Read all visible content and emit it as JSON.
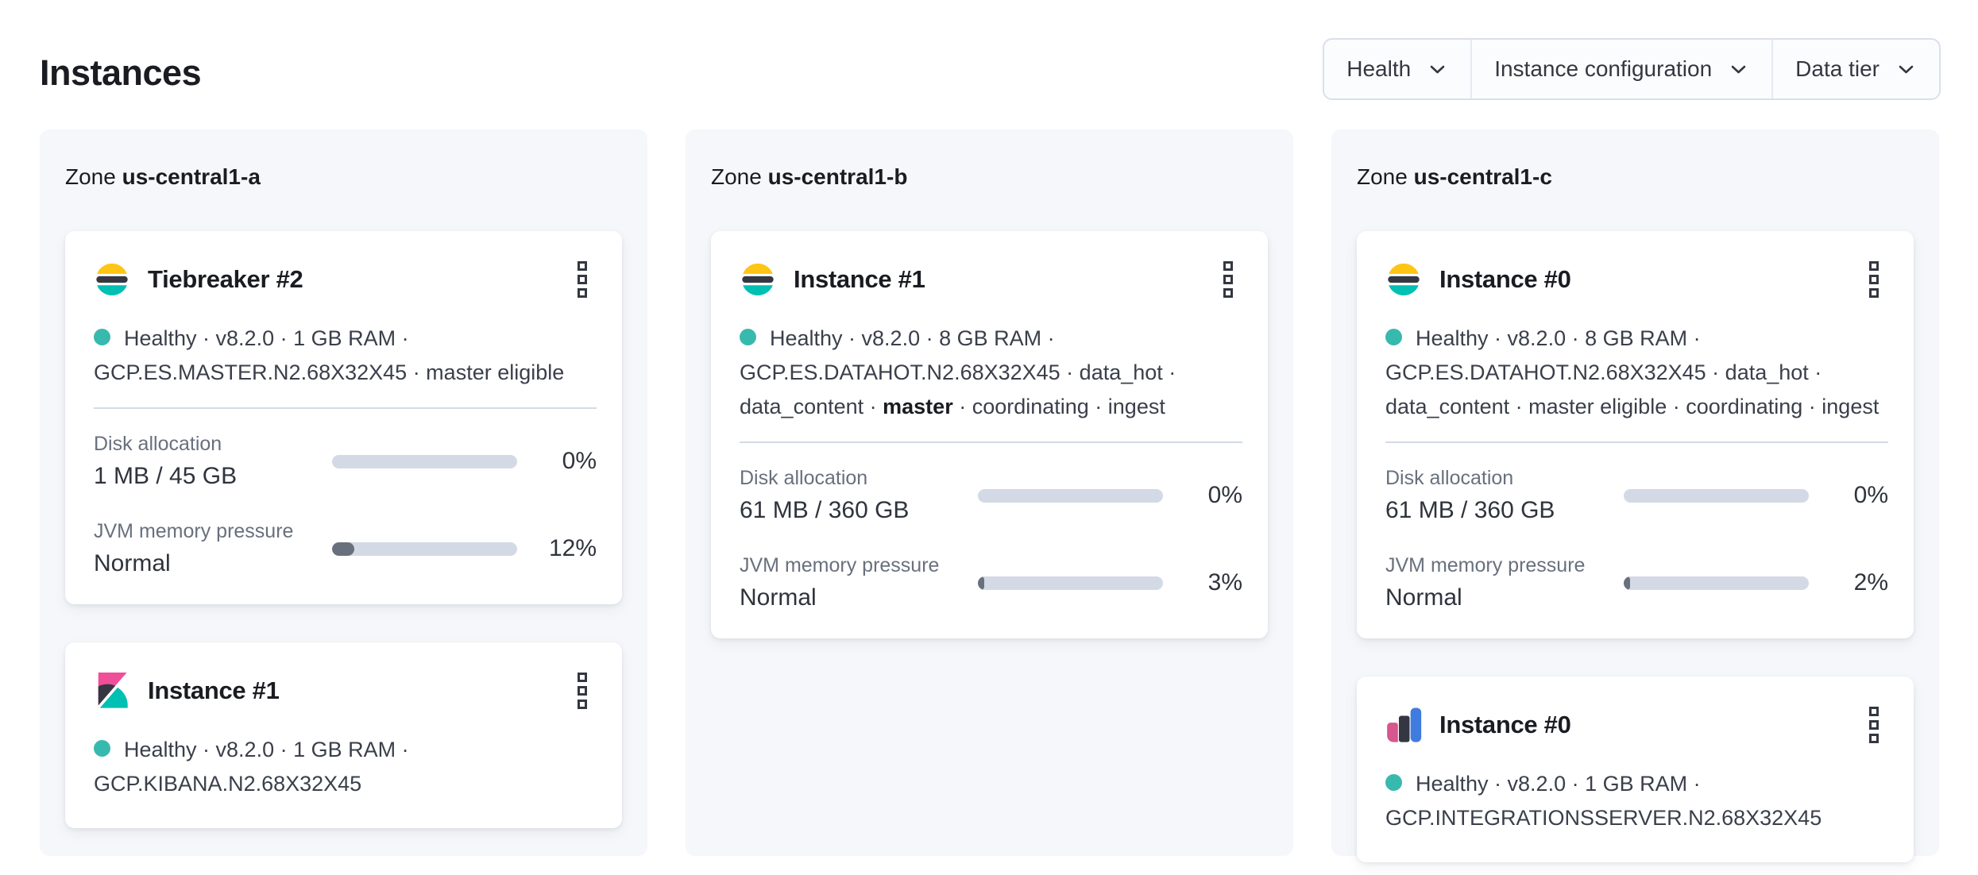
{
  "page": {
    "title": "Instances"
  },
  "filters": {
    "health": "Health",
    "instance_configuration": "Instance configuration",
    "data_tier": "Data tier"
  },
  "zones": [
    {
      "label": "Zone",
      "name": "us-central1-a",
      "instances": [
        {
          "logo": "elasticsearch",
          "title": "Tiebreaker #2",
          "status_lines": [
            "Healthy · v8.2.0 · 1 GB RAM ·",
            "GCP.ES.MASTER.N2.68X32X45 · master eligible"
          ],
          "disk": {
            "label": "Disk allocation",
            "value": "1 MB / 45 GB",
            "percent": 0,
            "percent_label": "0%"
          },
          "jvm": {
            "label": "JVM memory pressure",
            "value": "Normal",
            "percent": 12,
            "percent_label": "12%"
          }
        },
        {
          "logo": "kibana",
          "title": "Instance #1",
          "status_lines": [
            "Healthy · v8.2.0 · 1 GB RAM ·",
            "GCP.KIBANA.N2.68X32X45"
          ]
        }
      ]
    },
    {
      "label": "Zone",
      "name": "us-central1-b",
      "instances": [
        {
          "logo": "elasticsearch",
          "title": "Instance #1",
          "status_lines": [
            "Healthy · v8.2.0 · 8 GB RAM ·",
            "GCP.ES.DATAHOT.N2.68X32X45 · data_hot ·"
          ],
          "status_line3": {
            "pre": "data_content · ",
            "bold": "master",
            "post": " · coordinating · ingest"
          },
          "disk": {
            "label": "Disk allocation",
            "value": "61 MB / 360 GB",
            "percent": 0,
            "percent_label": "0%"
          },
          "jvm": {
            "label": "JVM memory pressure",
            "value": "Normal",
            "percent": 3,
            "percent_label": "3%"
          }
        }
      ]
    },
    {
      "label": "Zone",
      "name": "us-central1-c",
      "instances": [
        {
          "logo": "elasticsearch",
          "title": "Instance #0",
          "status_lines": [
            "Healthy · v8.2.0 · 8 GB RAM ·",
            "GCP.ES.DATAHOT.N2.68X32X45 · data_hot ·",
            "data_content · master eligible · coordinating · ingest"
          ],
          "disk": {
            "label": "Disk allocation",
            "value": "61 MB / 360 GB",
            "percent": 0,
            "percent_label": "0%"
          },
          "jvm": {
            "label": "JVM memory pressure",
            "value": "Normal",
            "percent": 2,
            "percent_label": "2%"
          }
        },
        {
          "logo": "integrations-server",
          "title": "Instance #0",
          "status_lines": [
            "Healthy · v8.2.0 · 1 GB RAM ·",
            "GCP.INTEGRATIONSSERVER.N2.68X32X45"
          ]
        }
      ]
    }
  ],
  "colors": {
    "health_dot": "#38b9ae",
    "elastic_yellow": "#fec514",
    "elastic_dark": "#343741",
    "elastic_teal": "#00bfb3",
    "kibana_pink": "#f04e98",
    "integrations_pink": "#d6568e",
    "integrations_blue": "#407ce0",
    "progress_track": "#d3dae6",
    "progress_fill": "#69707d",
    "zone_panel_bg": "#f5f7fa"
  }
}
